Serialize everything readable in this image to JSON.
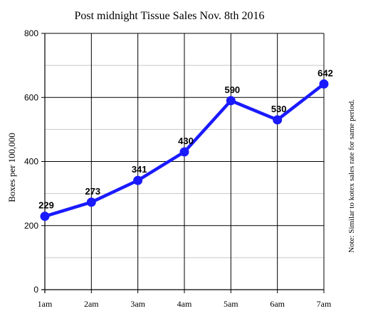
{
  "chart_data": {
    "type": "line",
    "title": "Post midnight Tissue Sales Nov. 8th 2016",
    "xlabel": "",
    "ylabel": "Boxes per 100,000",
    "note": "Note: Similar to kotex sales rate for same period.",
    "categories": [
      "1am",
      "2am",
      "3am",
      "4am",
      "5am",
      "6am",
      "7am"
    ],
    "series": [
      {
        "values": [
          229,
          273,
          341,
          430,
          590,
          530,
          642
        ]
      }
    ],
    "ylim": [
      0,
      800
    ],
    "yticks": [
      0,
      200,
      400,
      600,
      800
    ],
    "ygrid_minor_step": 100,
    "grid": true,
    "data_labels": true,
    "legend": "none",
    "colors": {
      "line": "#1a1aff",
      "grid_major": "#000000",
      "grid_minor": "#c8c8c8"
    }
  }
}
